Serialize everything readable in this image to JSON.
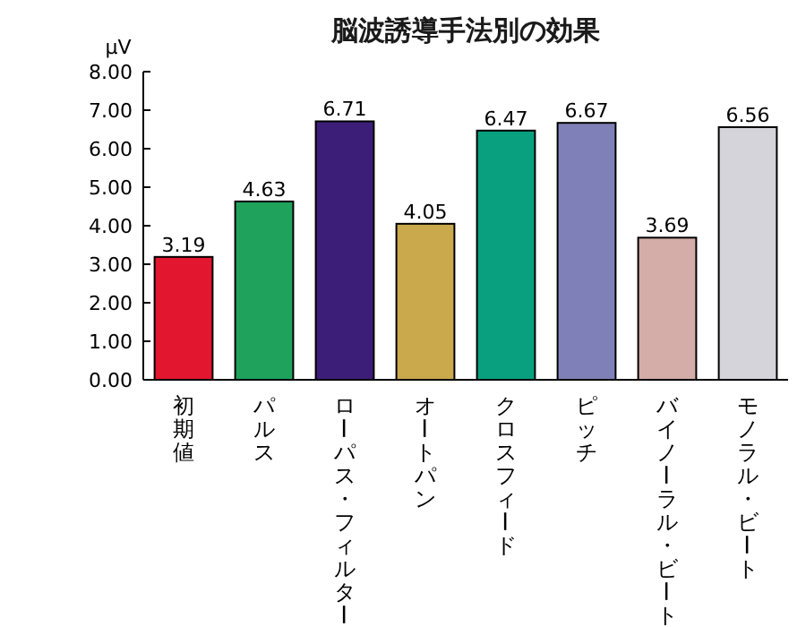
{
  "chart_data": {
    "type": "bar",
    "title": "脳波誘導手法別の効果",
    "ylabel": "μV",
    "categories": [
      "初期値",
      "パルス",
      "ローパス・フィルター",
      "オートパン",
      "クロスフィード",
      "ピッチ",
      "バイノーラル・ビート",
      "モノラル・ビート"
    ],
    "values": [
      3.19,
      4.63,
      6.71,
      4.05,
      6.47,
      6.67,
      3.69,
      6.56
    ],
    "colors": [
      "#e2162e",
      "#1ea25c",
      "#3c1e78",
      "#c9a94c",
      "#08a07e",
      "#8080b8",
      "#d4aca8",
      "#d4d4da"
    ],
    "ylim": [
      0,
      8
    ],
    "yticks": [
      {
        "value": 0,
        "label": "0.00"
      },
      {
        "value": 1,
        "label": "1.00"
      },
      {
        "value": 2,
        "label": "2.00"
      },
      {
        "value": 3,
        "label": "3.00"
      },
      {
        "value": 4,
        "label": "4.00"
      },
      {
        "value": 5,
        "label": "5.00"
      },
      {
        "value": 6,
        "label": "6.00"
      },
      {
        "value": 7,
        "label": "7.00"
      },
      {
        "value": 8,
        "label": "8.00"
      }
    ],
    "data_labels": true
  }
}
